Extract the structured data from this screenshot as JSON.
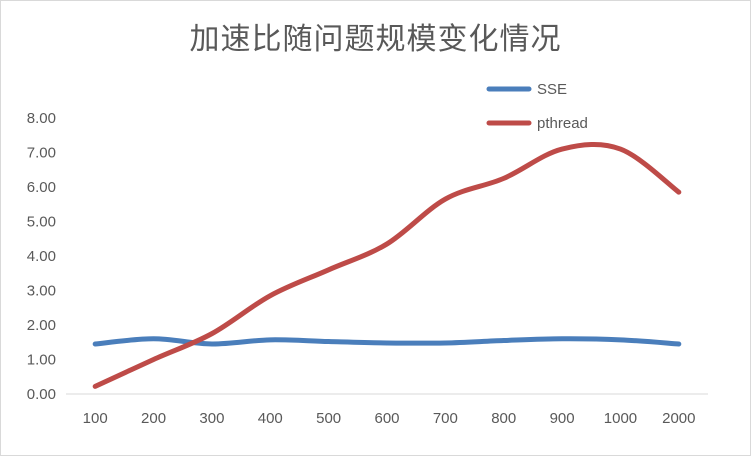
{
  "chart_data": {
    "type": "line",
    "title": "加速比随问题规模变化情况",
    "xlabel": "",
    "ylabel": "",
    "categories": [
      "100",
      "200",
      "300",
      "400",
      "500",
      "600",
      "700",
      "800",
      "900",
      "1000",
      "2000"
    ],
    "ylim": [
      0,
      8
    ],
    "y_ticks": [
      "0.00",
      "1.00",
      "2.00",
      "3.00",
      "4.00",
      "5.00",
      "6.00",
      "7.00",
      "8.00"
    ],
    "grid": false,
    "smooth": true,
    "legend_position": "top-right",
    "series": [
      {
        "name": "SSE",
        "color": "#4a7ebb",
        "values": [
          1.45,
          1.6,
          1.45,
          1.57,
          1.52,
          1.48,
          1.48,
          1.55,
          1.6,
          1.57,
          1.45
        ]
      },
      {
        "name": "pthread",
        "color": "#be4b48",
        "values": [
          0.22,
          1.0,
          1.75,
          2.85,
          3.6,
          4.35,
          5.65,
          6.25,
          7.1,
          7.1,
          5.85
        ]
      }
    ]
  }
}
